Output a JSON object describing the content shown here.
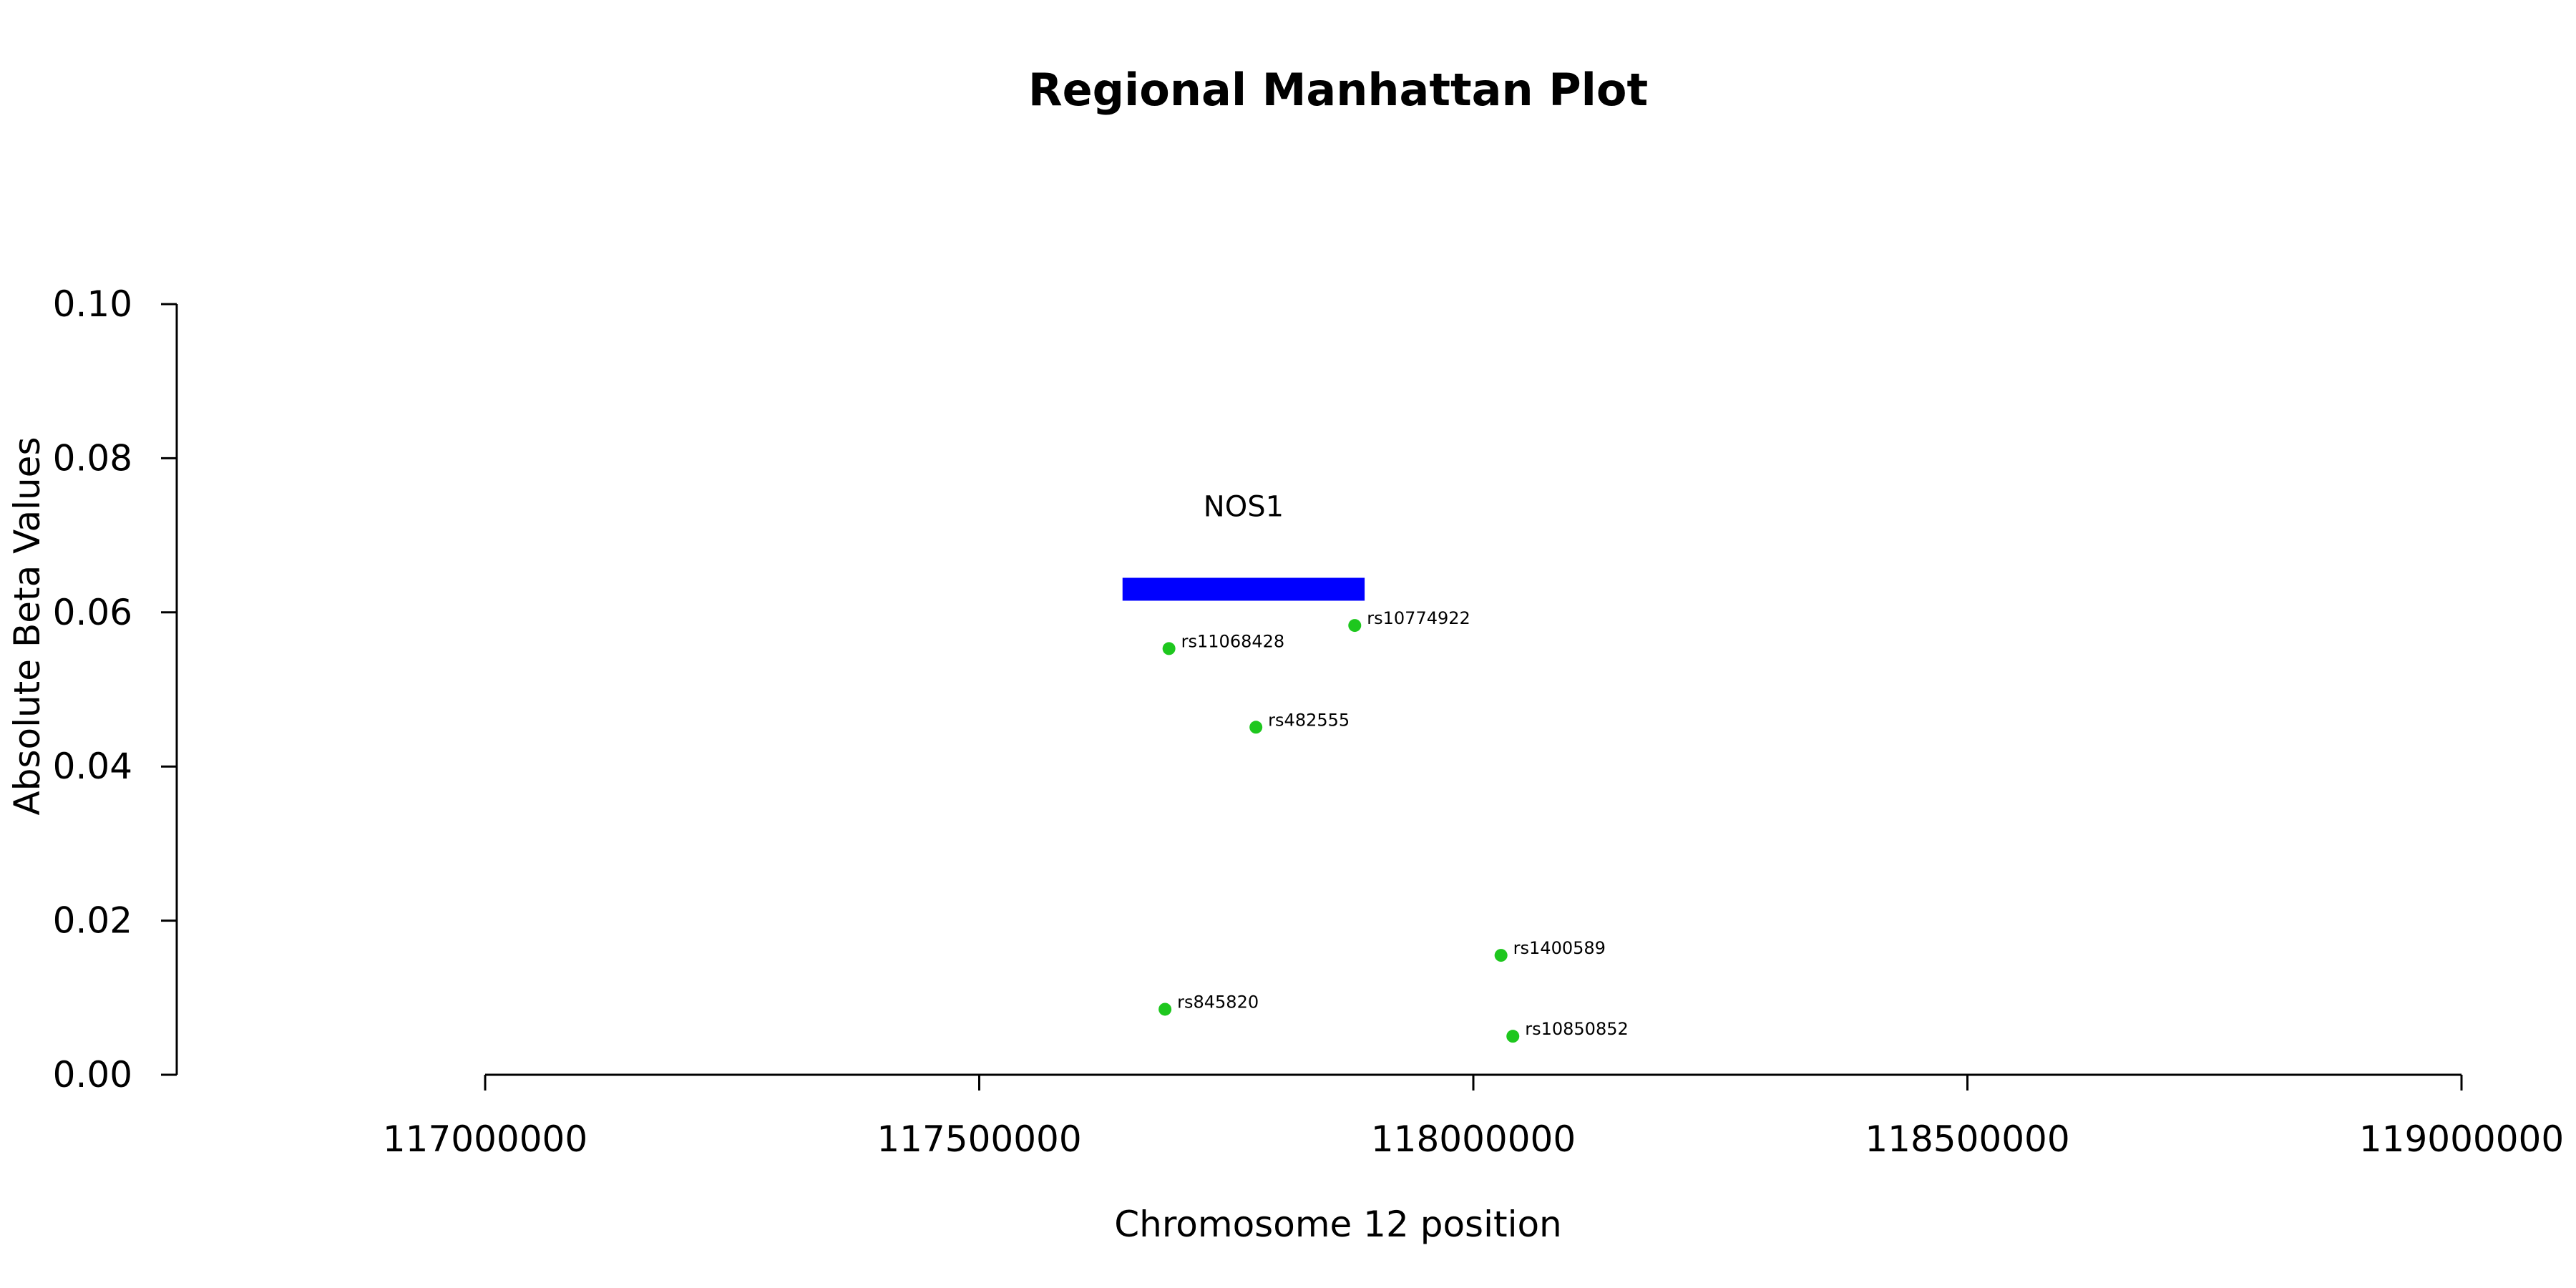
{
  "chart_data": {
    "type": "scatter",
    "title": "Regional Manhattan Plot",
    "xlabel": "Chromosome 12 position",
    "ylabel": "Absolute Beta Values",
    "xlim": [
      117000000,
      119000000
    ],
    "ylim": [
      0,
      0.1
    ],
    "x_ticks": [
      117000000,
      117500000,
      118000000,
      118500000,
      119000000
    ],
    "x_tick_labels": [
      "117000000",
      "117500000",
      "118000000",
      "118500000",
      "119000000"
    ],
    "y_ticks": [
      0,
      0.02,
      0.04,
      0.06,
      0.08,
      0.1
    ],
    "y_tick_labels": [
      "0.00",
      "0.02",
      "0.04",
      "0.06",
      "0.08",
      "0.10"
    ],
    "grid": false,
    "point_color": "#1ec71e",
    "gene_color": "#0000ff",
    "gene": {
      "name": "NOS1",
      "start": 117645000,
      "end": 117890000,
      "y": 0.063
    },
    "points": [
      {
        "label": "rs11068428",
        "x": 117692000,
        "y": 0.0553
      },
      {
        "label": "rs10774922",
        "x": 117880000,
        "y": 0.0583
      },
      {
        "label": "rs482555",
        "x": 117780000,
        "y": 0.0451
      },
      {
        "label": "rs1400589",
        "x": 118028000,
        "y": 0.0155
      },
      {
        "label": "rs845820",
        "x": 117688000,
        "y": 0.0085
      },
      {
        "label": "rs10850852",
        "x": 118040000,
        "y": 0.005
      }
    ]
  }
}
